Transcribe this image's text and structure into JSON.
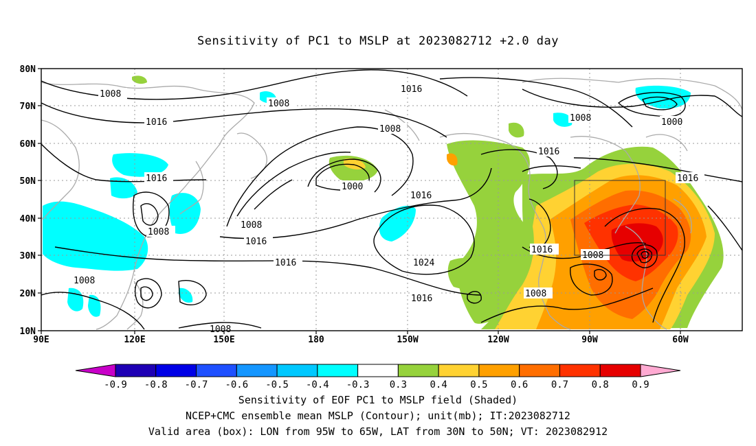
{
  "title": "Sensitivity of PC1 to MSLP at 2023082712 +2.0 day",
  "map": {
    "lat_ticks": [
      "80N",
      "70N",
      "60N",
      "50N",
      "40N",
      "30N",
      "20N",
      "10N"
    ],
    "lon_ticks": [
      "90E",
      "120E",
      "150E",
      "180",
      "150W",
      "120W",
      "90W",
      "60W"
    ],
    "contour_labels": [
      "1008",
      "1008",
      "1016",
      "1008",
      "1016",
      "1016",
      "1016",
      "1008",
      "1000",
      "1008",
      "1016",
      "1016",
      "1024",
      "1016",
      "1008",
      "1016",
      "1008",
      "1016",
      "1016",
      "1008",
      "1000",
      "1008",
      "1008"
    ],
    "valid_box": {
      "lon_from": "95W",
      "lon_to": "65W",
      "lat_from": "30N",
      "lat_to": "50N"
    }
  },
  "colorbar": {
    "labels": [
      "-0.9",
      "-0.8",
      "-0.7",
      "-0.6",
      "-0.5",
      "-0.4",
      "-0.3",
      "0.3",
      "0.4",
      "0.5",
      "0.6",
      "0.7",
      "0.8",
      "0.9"
    ],
    "colors": [
      "#c800c8",
      "#1e00b4",
      "#0000e6",
      "#1e50ff",
      "#1496ff",
      "#00c8ff",
      "#00ffff",
      "#ffffff",
      "#96d23c",
      "#ffd232",
      "#ffa000",
      "#ff6e00",
      "#ff3200",
      "#e60000",
      "#ffaad2"
    ]
  },
  "captions": [
    "Sensitivity of EOF PC1 to MSLP field (Shaded)",
    "NCEP+CMC ensemble mean MSLP (Contour); unit(mb); IT:2023082712",
    "Valid area (box): LON from 95W to 65W, LAT from 30N to 50N; VT: 2023082912"
  ]
}
